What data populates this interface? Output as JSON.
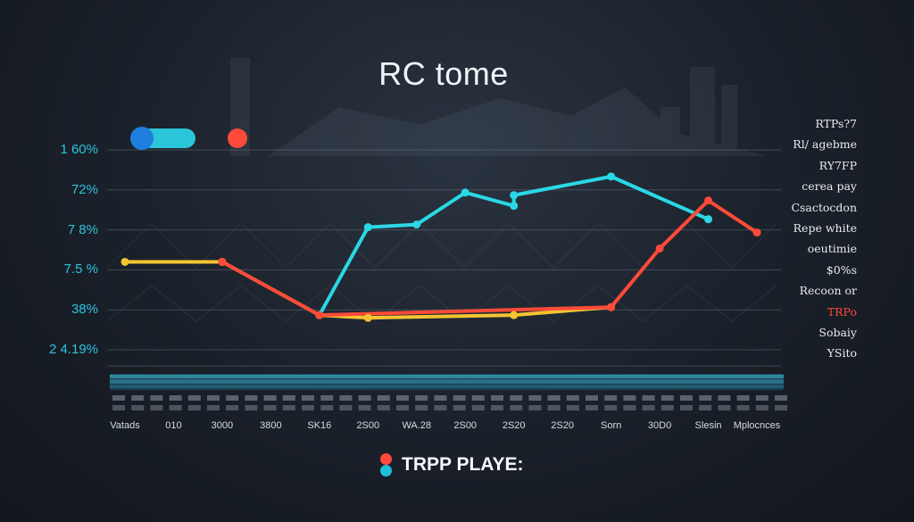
{
  "chart_data": {
    "type": "line",
    "title": "RC tome",
    "y_tick_labels": [
      "1 60%",
      "72%",
      "7 8%",
      "7.5 %",
      "38%",
      "2 4.19%"
    ],
    "x": [
      "Vatads",
      "010",
      "3000",
      "3800",
      "SK16",
      "2S00",
      "WA.28",
      "2S00",
      "2S20",
      "2S20",
      "Sorn",
      "30D0",
      "Slesin",
      "Mplocnces"
    ],
    "series": [
      {
        "color": "#2ad8e6",
        "points": [
          {
            "x": "SK16",
            "y": 38
          },
          {
            "x": "2S00",
            "y": 71
          },
          {
            "x": "WA.28",
            "y": 72
          },
          {
            "x": "2S00",
            "y": 84
          },
          {
            "x": "2S20",
            "y": 79
          },
          {
            "x": "2S20",
            "y": 83
          },
          {
            "x": "Sorn",
            "y": 90
          },
          {
            "x": "Slesin",
            "y": 74
          }
        ]
      },
      {
        "color": "#f4c531",
        "points": [
          {
            "x": "Vatads",
            "y": 58
          },
          {
            "x": "3000",
            "y": 58
          },
          {
            "x": "SK16",
            "y": 38
          },
          {
            "x": "2S00",
            "y": 37
          },
          {
            "x": "2S20",
            "y": 38
          },
          {
            "x": "Sorn",
            "y": 41
          }
        ]
      },
      {
        "color": "#ff4a3a",
        "points": [
          {
            "x": "3000",
            "y": 58
          },
          {
            "x": "SK16",
            "y": 38
          },
          {
            "x": "Sorn",
            "y": 41
          },
          {
            "x": "30D0",
            "y": 63
          },
          {
            "x": "Slesin",
            "y": 81
          },
          {
            "x": "Mplocnces",
            "y": 69
          }
        ]
      }
    ],
    "ylim": [
      25,
      100
    ],
    "grid": true,
    "legend": {
      "label": "TRPP PLAYE:",
      "placement": "bottom-center"
    },
    "right_labels": [
      {
        "text": "RTPs?7",
        "accent": false
      },
      {
        "text": "Rl/ agebme",
        "accent": false
      },
      {
        "text": "RY7FP",
        "accent": false
      },
      {
        "text": "cerea pay",
        "accent": false
      },
      {
        "text": "Csactocdon",
        "accent": false
      },
      {
        "text": "Repe white",
        "accent": false
      },
      {
        "text": "oeutimie",
        "accent": false
      },
      {
        "text": "$0%s",
        "accent": false
      },
      {
        "text": "Recoon or",
        "accent": false
      },
      {
        "text": "TRPo",
        "accent": true
      },
      {
        "text": "Sobaiy",
        "accent": false
      },
      {
        "text": "YSito",
        "accent": false
      }
    ]
  },
  "colors": {
    "cyan": "#2ad8e6",
    "yellow": "#f4c531",
    "orange": "#f08a3a",
    "red": "#ff4a3a",
    "blue_knob": "#1e7fe0",
    "tick_text": "#2bc3e0"
  },
  "controls": {
    "toggle_state": "on"
  }
}
